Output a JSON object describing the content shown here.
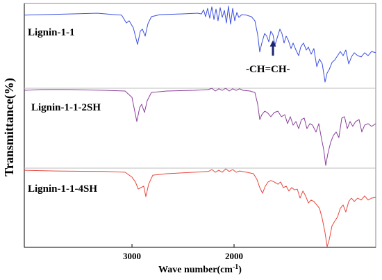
{
  "chart_data": {
    "type": "line",
    "title": "",
    "xlabel": {
      "text": "Wave number(cm",
      "sup": "-1",
      "close": ")"
    },
    "ylabel": "Transmittance(%)",
    "xlim": [
      4055,
      612
    ],
    "ylim": [
      0,
      100
    ],
    "xticks": [
      3000,
      2000
    ],
    "yticks": [],
    "x_reversed": true,
    "grid": false,
    "legend": "inline-left",
    "series": [
      {
        "name": "Lignin-1-1",
        "color": "#3b4fe0",
        "points": [
          [
            4055,
            95.2
          ],
          [
            3885,
            95.4
          ],
          [
            3613,
            95.7
          ],
          [
            3340,
            96.0
          ],
          [
            3170,
            95.4
          ],
          [
            3102,
            95.2
          ],
          [
            3055,
            92.0
          ],
          [
            3028,
            92.9
          ],
          [
            2987,
            90.0
          ],
          [
            2946,
            83.2
          ],
          [
            2919,
            88.6
          ],
          [
            2898,
            89.5
          ],
          [
            2871,
            86.6
          ],
          [
            2844,
            91.7
          ],
          [
            2810,
            94.6
          ],
          [
            2728,
            95.4
          ],
          [
            2524,
            95.7
          ],
          [
            2354,
            96.0
          ],
          [
            2320,
            95.7
          ],
          [
            2299,
            97.4
          ],
          [
            2279,
            94.6
          ],
          [
            2259,
            98.0
          ],
          [
            2238,
            94.0
          ],
          [
            2218,
            98.6
          ],
          [
            2197,
            93.4
          ],
          [
            2177,
            97.7
          ],
          [
            2157,
            92.9
          ],
          [
            2136,
            98.3
          ],
          [
            2116,
            94.3
          ],
          [
            2095,
            97.2
          ],
          [
            2075,
            92.0
          ],
          [
            2055,
            98.9
          ],
          [
            2034,
            91.5
          ],
          [
            2014,
            98.0
          ],
          [
            1993,
            92.9
          ],
          [
            1973,
            96.3
          ],
          [
            1953,
            94.3
          ],
          [
            1925,
            95.4
          ],
          [
            1878,
            95.2
          ],
          [
            1830,
            94.6
          ],
          [
            1796,
            92.9
          ],
          [
            1769,
            87.2
          ],
          [
            1748,
            80.1
          ],
          [
            1728,
            83.8
          ],
          [
            1701,
            87.7
          ],
          [
            1680,
            86.6
          ],
          [
            1660,
            84.3
          ],
          [
            1640,
            88.6
          ],
          [
            1619,
            87.2
          ],
          [
            1599,
            82.9
          ],
          [
            1578,
            85.8
          ],
          [
            1551,
            89.5
          ],
          [
            1531,
            87.7
          ],
          [
            1510,
            83.8
          ],
          [
            1490,
            86.6
          ],
          [
            1469,
            84.9
          ],
          [
            1442,
            81.5
          ],
          [
            1422,
            83.8
          ],
          [
            1394,
            80.9
          ],
          [
            1367,
            78.6
          ],
          [
            1347,
            82.1
          ],
          [
            1320,
            83.8
          ],
          [
            1292,
            80.9
          ],
          [
            1272,
            82.1
          ],
          [
            1245,
            79.2
          ],
          [
            1218,
            81.5
          ],
          [
            1190,
            74.1
          ],
          [
            1163,
            77.2
          ],
          [
            1136,
            75.2
          ],
          [
            1109,
            67.8
          ],
          [
            1088,
            71.5
          ],
          [
            1068,
            72.9
          ],
          [
            1041,
            75.8
          ],
          [
            1013,
            76.9
          ],
          [
            986,
            78.6
          ],
          [
            959,
            80.3
          ],
          [
            932,
            78.6
          ],
          [
            905,
            80.9
          ],
          [
            877,
            75.2
          ],
          [
            850,
            78.1
          ],
          [
            823,
            79.8
          ],
          [
            789,
            78.6
          ],
          [
            755,
            78.1
          ],
          [
            721,
            79.8
          ],
          [
            687,
            78.6
          ],
          [
            653,
            80.3
          ],
          [
            612,
            79.8
          ]
        ]
      },
      {
        "name": "Lignin-1-1-2SH",
        "color": "#8b3f9c",
        "points": [
          [
            4055,
            64.4
          ],
          [
            3885,
            64.7
          ],
          [
            3613,
            64.7
          ],
          [
            3272,
            64.4
          ],
          [
            3068,
            64.1
          ],
          [
            3000,
            61.5
          ],
          [
            2953,
            51.6
          ],
          [
            2925,
            57.3
          ],
          [
            2905,
            58.7
          ],
          [
            2878,
            55.3
          ],
          [
            2851,
            60.1
          ],
          [
            2810,
            63.5
          ],
          [
            2660,
            64.1
          ],
          [
            2388,
            64.4
          ],
          [
            2252,
            64.7
          ],
          [
            2218,
            65.2
          ],
          [
            2184,
            64.1
          ],
          [
            2150,
            65.0
          ],
          [
            2116,
            64.4
          ],
          [
            2082,
            65.2
          ],
          [
            2048,
            64.1
          ],
          [
            2014,
            65.0
          ],
          [
            1980,
            64.4
          ],
          [
            1946,
            65.0
          ],
          [
            1912,
            64.4
          ],
          [
            1844,
            64.1
          ],
          [
            1796,
            63.5
          ],
          [
            1769,
            58.7
          ],
          [
            1748,
            52.4
          ],
          [
            1728,
            54.4
          ],
          [
            1701,
            55.8
          ],
          [
            1674,
            55.3
          ],
          [
            1640,
            53.6
          ],
          [
            1606,
            55.3
          ],
          [
            1571,
            55.8
          ],
          [
            1537,
            53.6
          ],
          [
            1503,
            54.4
          ],
          [
            1476,
            50.7
          ],
          [
            1449,
            53.6
          ],
          [
            1422,
            50.1
          ],
          [
            1394,
            51.6
          ],
          [
            1367,
            48.7
          ],
          [
            1340,
            52.4
          ],
          [
            1313,
            53.0
          ],
          [
            1286,
            48.7
          ],
          [
            1258,
            50.7
          ],
          [
            1231,
            50.1
          ],
          [
            1197,
            47.3
          ],
          [
            1170,
            50.7
          ],
          [
            1143,
            44.4
          ],
          [
            1122,
            40.2
          ],
          [
            1102,
            33.6
          ],
          [
            1082,
            38.2
          ],
          [
            1054,
            43.0
          ],
          [
            1027,
            45.9
          ],
          [
            1000,
            47.3
          ],
          [
            973,
            45.0
          ],
          [
            945,
            53.0
          ],
          [
            918,
            53.6
          ],
          [
            891,
            48.7
          ],
          [
            864,
            51.6
          ],
          [
            837,
            49.6
          ],
          [
            809,
            51.6
          ],
          [
            775,
            52.4
          ],
          [
            748,
            47.3
          ],
          [
            721,
            50.1
          ],
          [
            687,
            50.7
          ],
          [
            653,
            49.6
          ],
          [
            612,
            50.7
          ]
        ]
      },
      {
        "name": "Lignin-1-1-4SH",
        "color": "#e8453c",
        "points": [
          [
            4055,
            31.6
          ],
          [
            3749,
            31.3
          ],
          [
            3272,
            31.1
          ],
          [
            3068,
            30.8
          ],
          [
            3000,
            28.8
          ],
          [
            2966,
            26.8
          ],
          [
            2939,
            23.9
          ],
          [
            2912,
            24.5
          ],
          [
            2885,
            25.1
          ],
          [
            2864,
            20.8
          ],
          [
            2837,
            25.9
          ],
          [
            2796,
            29.6
          ],
          [
            2660,
            30.2
          ],
          [
            2388,
            30.8
          ],
          [
            2252,
            31.1
          ],
          [
            2218,
            31.9
          ],
          [
            2184,
            30.8
          ],
          [
            2150,
            31.6
          ],
          [
            2116,
            30.8
          ],
          [
            2082,
            32.2
          ],
          [
            2048,
            31.1
          ],
          [
            2014,
            31.9
          ],
          [
            1980,
            30.8
          ],
          [
            1946,
            31.3
          ],
          [
            1878,
            30.8
          ],
          [
            1810,
            30.2
          ],
          [
            1776,
            27.9
          ],
          [
            1748,
            24.5
          ],
          [
            1721,
            22.2
          ],
          [
            1694,
            25.1
          ],
          [
            1667,
            26.8
          ],
          [
            1640,
            27.4
          ],
          [
            1606,
            26.8
          ],
          [
            1571,
            25.9
          ],
          [
            1544,
            26.8
          ],
          [
            1517,
            24.5
          ],
          [
            1490,
            25.1
          ],
          [
            1463,
            23.1
          ],
          [
            1435,
            24.5
          ],
          [
            1408,
            23.6
          ],
          [
            1381,
            23.9
          ],
          [
            1354,
            20.2
          ],
          [
            1326,
            23.1
          ],
          [
            1299,
            21.1
          ],
          [
            1272,
            18.2
          ],
          [
            1245,
            19.4
          ],
          [
            1218,
            18.8
          ],
          [
            1190,
            17.4
          ],
          [
            1163,
            16.0
          ],
          [
            1136,
            11.7
          ],
          [
            1109,
            6.0
          ],
          [
            1088,
            0.3
          ],
          [
            1068,
            3.1
          ],
          [
            1041,
            8.8
          ],
          [
            1013,
            10.8
          ],
          [
            986,
            12.5
          ],
          [
            959,
            16.0
          ],
          [
            932,
            17.4
          ],
          [
            905,
            14.5
          ],
          [
            877,
            18.8
          ],
          [
            850,
            20.2
          ],
          [
            823,
            18.8
          ],
          [
            789,
            20.2
          ],
          [
            755,
            19.4
          ],
          [
            721,
            21.1
          ],
          [
            687,
            19.4
          ],
          [
            653,
            20.2
          ],
          [
            612,
            20.5
          ]
        ]
      }
    ],
    "annotations": [
      {
        "text": "-CH=CH-",
        "x": 1619,
        "y_tip": 84.9,
        "y_base": 78.6,
        "color": "#1c2470"
      }
    ]
  }
}
